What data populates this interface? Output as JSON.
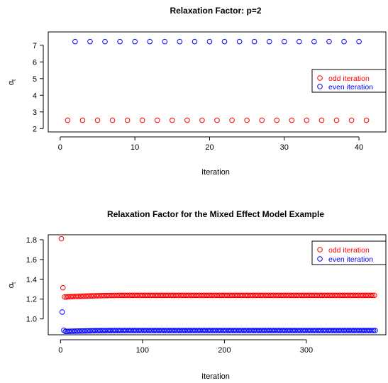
{
  "chart_data": [
    {
      "type": "scatter",
      "title": "Relaxation Factor: p=2",
      "xlabel": "Iteration",
      "ylabel": "α_t",
      "xlim": [
        -1.6,
        43.6
      ],
      "ylim": [
        1.8,
        7.8
      ],
      "xticks": [
        "0",
        "10",
        "20",
        "30",
        "40"
      ],
      "yticks": [
        "2",
        "3",
        "4",
        "5",
        "6",
        "7"
      ],
      "grid": false,
      "legend_position": "right",
      "series": [
        {
          "name": "odd iteration",
          "color": "#ff0000",
          "marker": "open-circle",
          "x": [
            1,
            3,
            5,
            7,
            9,
            11,
            13,
            15,
            17,
            19,
            21,
            23,
            25,
            27,
            29,
            31,
            33,
            35,
            37,
            39,
            41
          ],
          "y": [
            2.5,
            2.5,
            2.5,
            2.5,
            2.5,
            2.5,
            2.5,
            2.5,
            2.5,
            2.5,
            2.5,
            2.5,
            2.5,
            2.5,
            2.5,
            2.5,
            2.5,
            2.5,
            2.5,
            2.5,
            2.5
          ]
        },
        {
          "name": "even iteration",
          "color": "#0000ff",
          "marker": "open-circle",
          "x": [
            2,
            4,
            6,
            8,
            10,
            12,
            14,
            16,
            18,
            20,
            22,
            24,
            26,
            28,
            30,
            32,
            34,
            36,
            38,
            40
          ],
          "y": [
            7.22,
            7.22,
            7.22,
            7.22,
            7.22,
            7.22,
            7.22,
            7.22,
            7.22,
            7.22,
            7.22,
            7.22,
            7.22,
            7.22,
            7.22,
            7.22,
            7.22,
            7.22,
            7.22,
            7.22
          ]
        }
      ]
    },
    {
      "type": "scatter",
      "title": "Relaxation Factor for the Mixed Effect Model Example",
      "xlabel": "Iteration",
      "ylabel": "α_t",
      "xlim": [
        -15,
        397
      ],
      "ylim": [
        0.84,
        1.85
      ],
      "xticks": [
        "0",
        "100",
        "200",
        "300"
      ],
      "yticks": [
        "1.0",
        "1.2",
        "1.4",
        "1.6",
        "1.8"
      ],
      "grid": false,
      "legend_position": "top-right",
      "series": [
        {
          "name": "odd iteration",
          "color": "#ff0000",
          "marker": "open-circle",
          "start": 1,
          "end": 383,
          "step": 2,
          "first_values": [
            [
              1,
              1.81
            ],
            [
              3,
              1.315
            ],
            [
              5,
              1.222
            ]
          ],
          "plateau": 1.238,
          "plateau_from": 7,
          "approach_from": 1.222,
          "approach_until": 80
        },
        {
          "name": "even iteration",
          "color": "#0000ff",
          "marker": "open-circle",
          "start": 2,
          "end": 384,
          "step": 2,
          "first_values": [
            [
              2,
              1.07
            ],
            [
              4,
              0.885
            ]
          ],
          "plateau": 0.883,
          "plateau_from": 6,
          "approach_from": 0.874,
          "approach_until": 80
        }
      ]
    }
  ]
}
